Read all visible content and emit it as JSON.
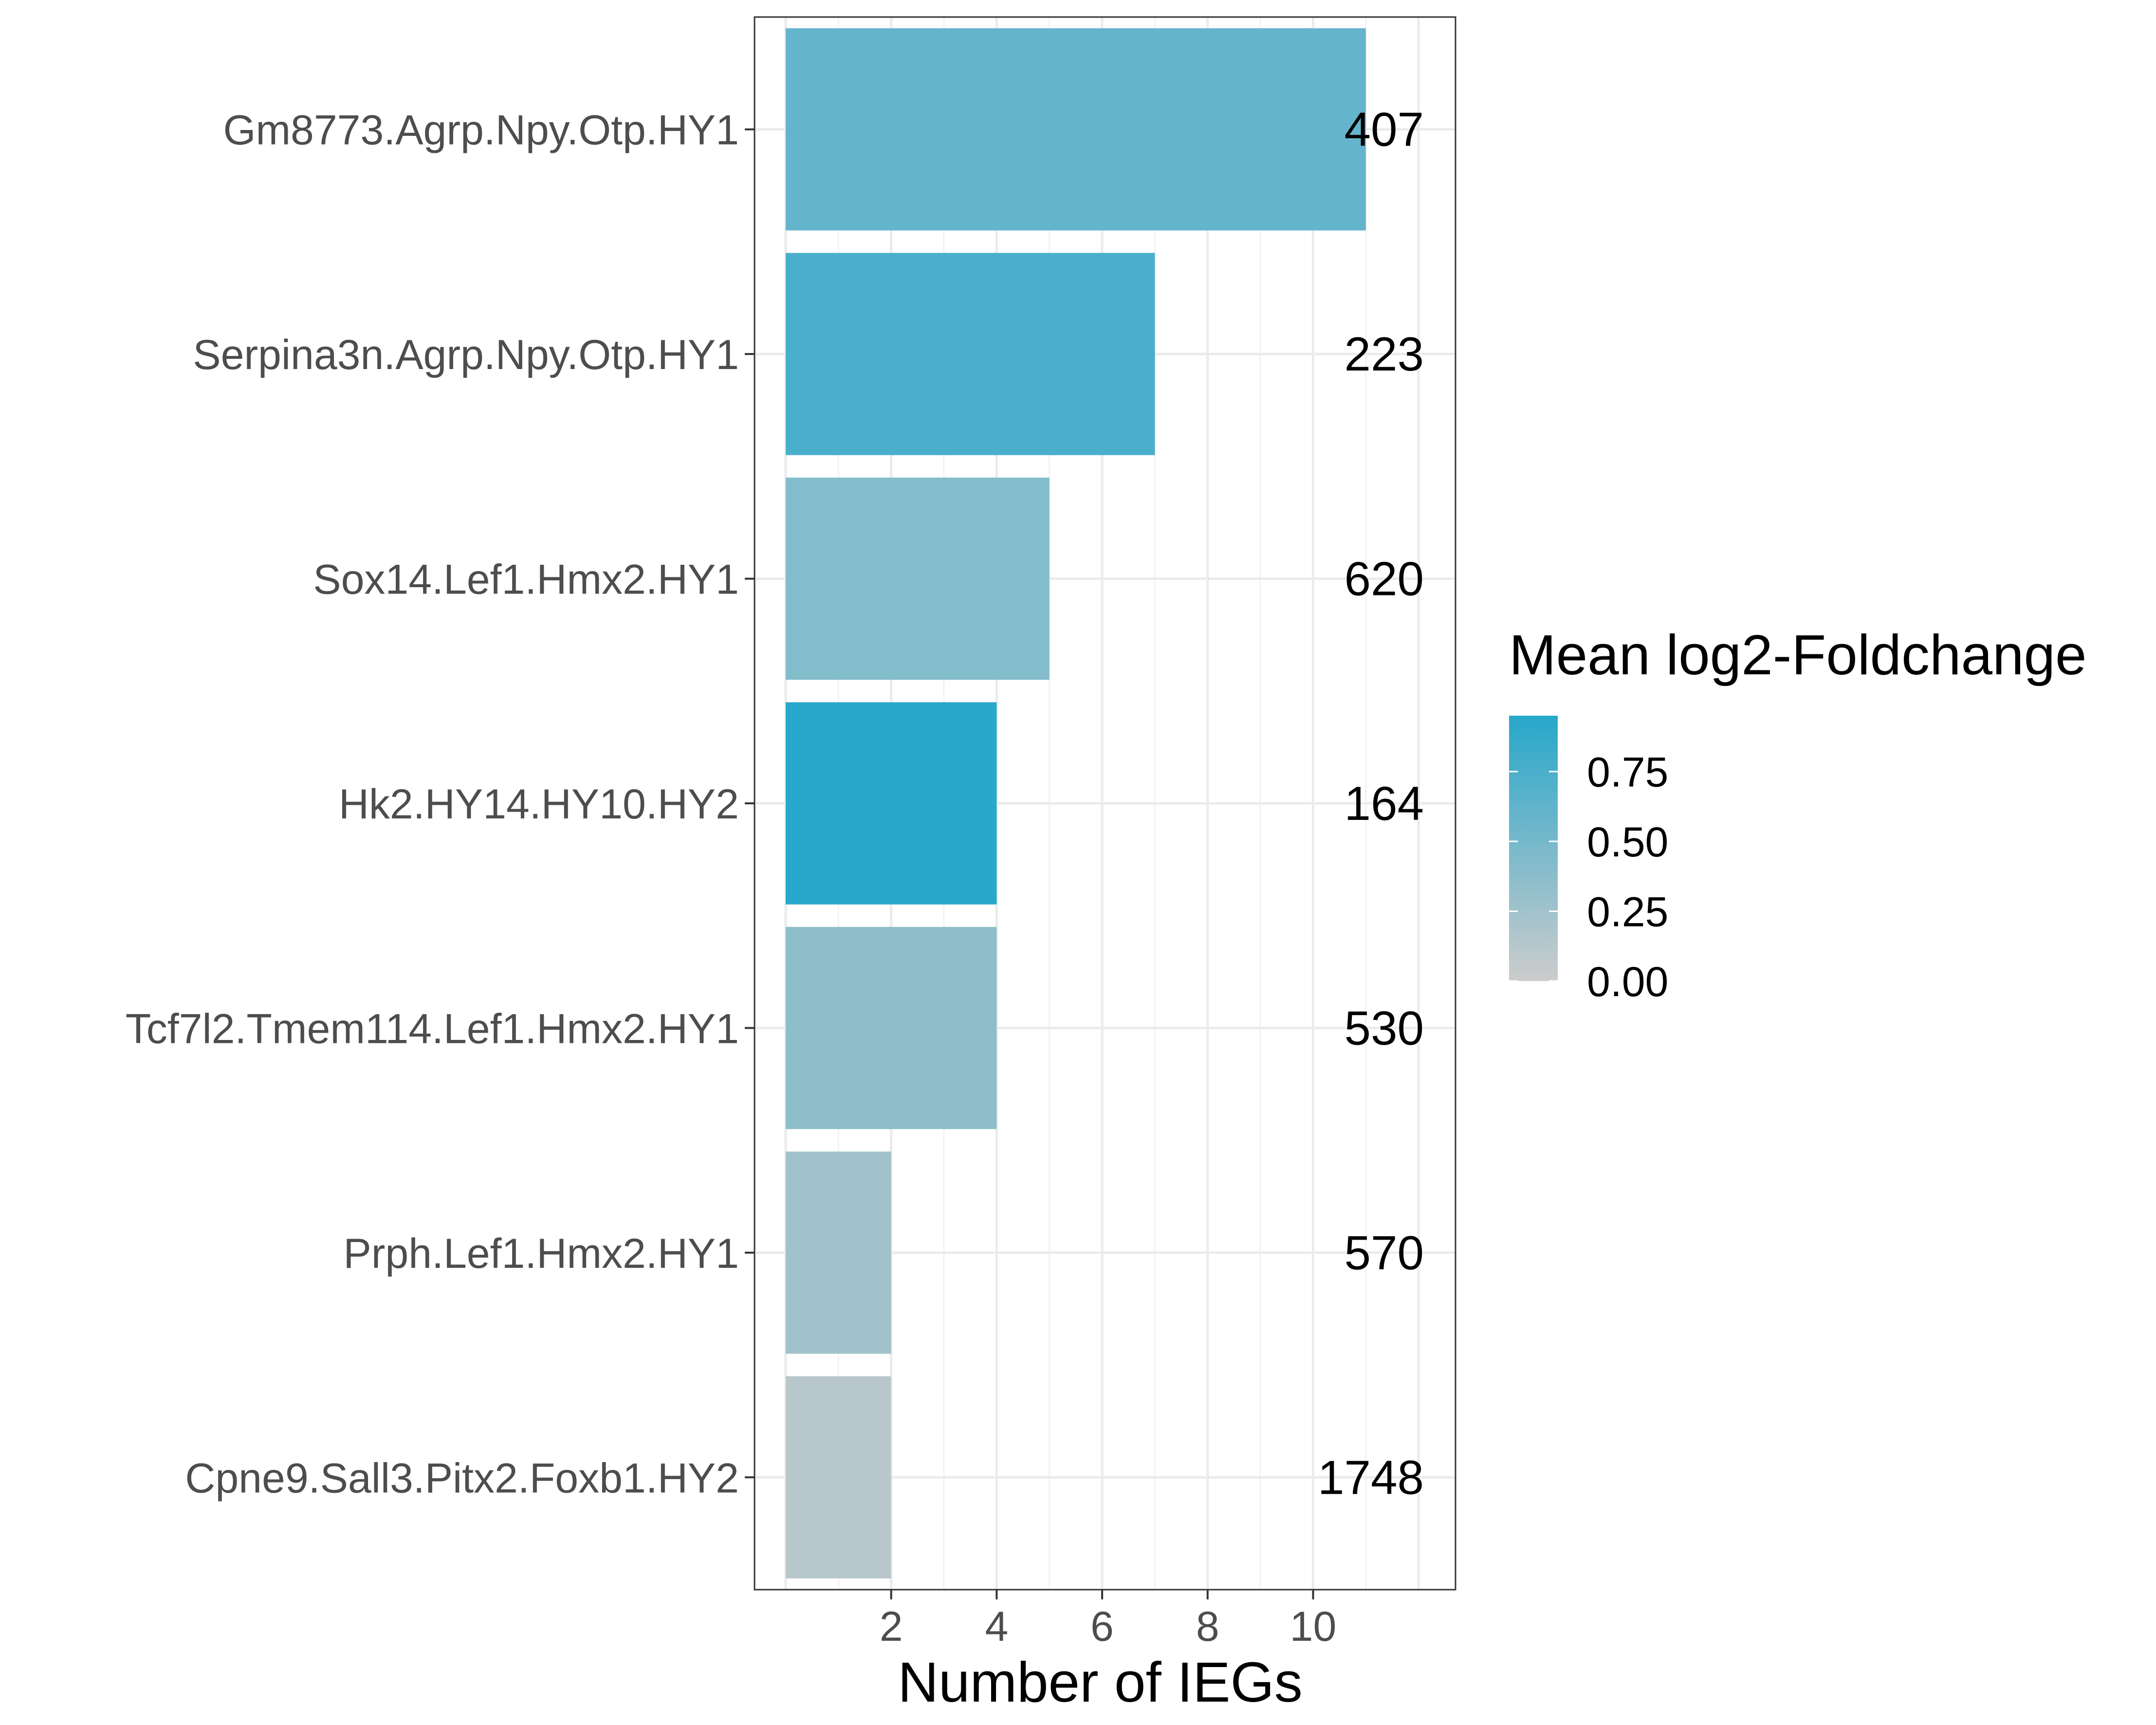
{
  "chart_data": {
    "type": "bar",
    "orientation": "horizontal",
    "title": "",
    "xlabel": "Number of IEGs",
    "ylabel": "",
    "xlim": [
      0,
      12.7
    ],
    "xticks": [
      2,
      4,
      6,
      8,
      10
    ],
    "x_tick_labels": [
      "2",
      "4",
      "6",
      "8",
      "10"
    ],
    "grid": true,
    "categories": [
      "Gm8773.Agrp.Npy.Otp.HY1",
      "Serpina3n.Agrp.Npy.Otp.HY1",
      "Sox14.Lef1.Hmx2.HY1",
      "Hk2.HY14.HY10.HY2",
      "Tcf7l2.Tmem114.Lef1.Hmx2.HY1",
      "Prph.Lef1.Hmx2.HY1",
      "Cpne9.Sall3.Pitx2.Foxb1.HY2"
    ],
    "values": [
      11,
      7,
      5,
      4,
      4,
      2,
      2
    ],
    "data_labels": [
      "407",
      "223",
      "620",
      "164",
      "530",
      "570",
      "1748"
    ],
    "fill_values": [
      0.6,
      0.75,
      0.42,
      0.95,
      0.35,
      0.25,
      0.12
    ],
    "legend": {
      "title": "Mean log2-Foldchange",
      "position": "right",
      "range": [
        0,
        0.95
      ],
      "ticks": [
        0.75,
        0.5,
        0.25,
        0.0
      ],
      "tick_labels": [
        "0.75",
        "0.50",
        "0.25",
        "0.00"
      ],
      "color_low": "#cccccc",
      "color_high": "#27a7ca"
    }
  }
}
